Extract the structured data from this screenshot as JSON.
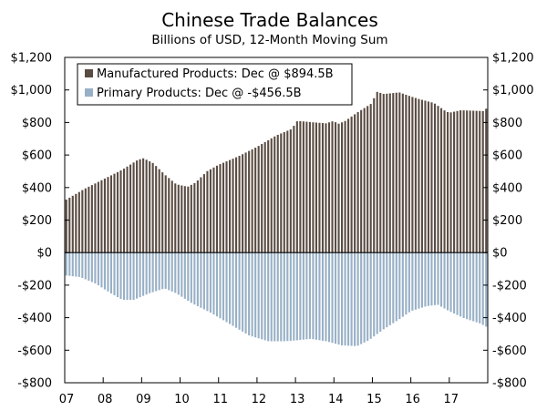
{
  "chart_data": {
    "type": "bar",
    "title": "Chinese Trade Balances",
    "subtitle": "Billions of USD, 12-Month Moving Sum",
    "ylim": [
      -800,
      1200
    ],
    "y_ticks": [
      1200,
      1000,
      800,
      600,
      400,
      200,
      0,
      -200,
      -400,
      -600,
      -800
    ],
    "y_tick_labels": [
      "$1,200",
      "$1,000",
      "$800",
      "$600",
      "$400",
      "$200",
      "$0",
      "-$200",
      "-$400",
      "-$600",
      "-$800"
    ],
    "x_tick_labels": [
      "07",
      "08",
      "09",
      "10",
      "11",
      "12",
      "13",
      "14",
      "15",
      "16",
      "17"
    ],
    "x_range_years": [
      2007,
      2018
    ],
    "series": [
      {
        "name": "Manufactured Products",
        "legend": "Manufactured Products: Dec @ $894.5B",
        "color": "#5a4c43",
        "anchors": [
          [
            2007.0,
            320
          ],
          [
            2007.5,
            390
          ],
          [
            2008.0,
            450
          ],
          [
            2008.5,
            510
          ],
          [
            2008.9,
            570
          ],
          [
            2009.05,
            580
          ],
          [
            2009.3,
            550
          ],
          [
            2009.6,
            480
          ],
          [
            2009.9,
            420
          ],
          [
            2010.2,
            405
          ],
          [
            2010.4,
            430
          ],
          [
            2010.7,
            500
          ],
          [
            2011.0,
            540
          ],
          [
            2011.5,
            590
          ],
          [
            2012.0,
            650
          ],
          [
            2012.5,
            720
          ],
          [
            2012.9,
            760
          ],
          [
            2013.05,
            810
          ],
          [
            2013.5,
            800
          ],
          [
            2013.8,
            795
          ],
          [
            2014.0,
            810
          ],
          [
            2014.1,
            790
          ],
          [
            2014.3,
            810
          ],
          [
            2014.6,
            860
          ],
          [
            2015.0,
            920
          ],
          [
            2015.1,
            990
          ],
          [
            2015.3,
            975
          ],
          [
            2015.7,
            985
          ],
          [
            2016.0,
            960
          ],
          [
            2016.2,
            945
          ],
          [
            2016.6,
            920
          ],
          [
            2016.9,
            870
          ],
          [
            2017.0,
            860
          ],
          [
            2017.3,
            875
          ],
          [
            2017.9,
            870
          ],
          [
            2018.0,
            895
          ]
        ]
      },
      {
        "name": "Primary Products",
        "legend": "Primary Products: Dec @ -$456.5B",
        "color": "#98b0c6",
        "anchors": [
          [
            2007.0,
            -140
          ],
          [
            2007.4,
            -150
          ],
          [
            2007.8,
            -190
          ],
          [
            2008.2,
            -250
          ],
          [
            2008.5,
            -290
          ],
          [
            2008.8,
            -290
          ],
          [
            2009.2,
            -250
          ],
          [
            2009.6,
            -220
          ],
          [
            2009.9,
            -250
          ],
          [
            2010.3,
            -310
          ],
          [
            2010.8,
            -370
          ],
          [
            2011.3,
            -440
          ],
          [
            2011.8,
            -510
          ],
          [
            2012.3,
            -545
          ],
          [
            2012.7,
            -545
          ],
          [
            2013.0,
            -540
          ],
          [
            2013.4,
            -530
          ],
          [
            2013.8,
            -545
          ],
          [
            2014.2,
            -570
          ],
          [
            2014.6,
            -575
          ],
          [
            2014.9,
            -540
          ],
          [
            2015.3,
            -470
          ],
          [
            2015.7,
            -410
          ],
          [
            2016.0,
            -360
          ],
          [
            2016.4,
            -330
          ],
          [
            2016.7,
            -320
          ],
          [
            2017.0,
            -360
          ],
          [
            2017.4,
            -405
          ],
          [
            2017.8,
            -435
          ],
          [
            2018.0,
            -460
          ]
        ]
      }
    ]
  }
}
